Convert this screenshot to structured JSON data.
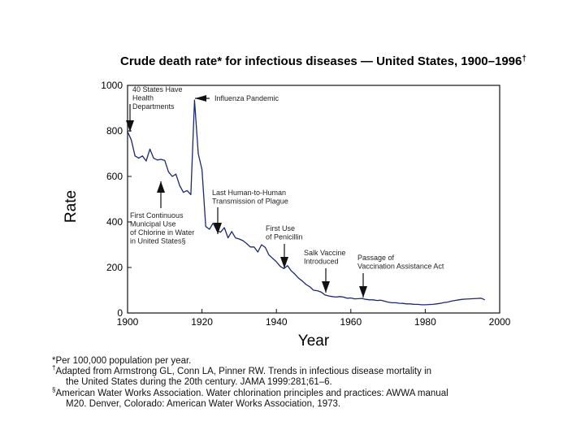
{
  "chart_data": {
    "type": "line",
    "title": "Crude death rate* for infectious diseases — United States, 1900–1996",
    "title_marker": "†",
    "xlabel": "Year",
    "ylabel": "Rate",
    "xlim": [
      1900,
      2000
    ],
    "ylim": [
      0,
      1000
    ],
    "x_ticks": [
      1900,
      1920,
      1940,
      1960,
      1980,
      2000
    ],
    "y_ticks": [
      0,
      200,
      400,
      600,
      800,
      1000
    ],
    "grid": false,
    "series": [
      {
        "name": "Crude death rate",
        "color": "#1b2a6b",
        "points": [
          [
            1900,
            797
          ],
          [
            1901,
            760
          ],
          [
            1902,
            690
          ],
          [
            1903,
            680
          ],
          [
            1904,
            690
          ],
          [
            1905,
            668
          ],
          [
            1906,
            720
          ],
          [
            1907,
            680
          ],
          [
            1908,
            672
          ],
          [
            1909,
            675
          ],
          [
            1910,
            670
          ],
          [
            1911,
            620
          ],
          [
            1912,
            600
          ],
          [
            1913,
            610
          ],
          [
            1914,
            560
          ],
          [
            1915,
            530
          ],
          [
            1916,
            538
          ],
          [
            1917,
            520
          ],
          [
            1918,
            935
          ],
          [
            1919,
            700
          ],
          [
            1920,
            630
          ],
          [
            1921,
            380
          ],
          [
            1922,
            368
          ],
          [
            1923,
            395
          ],
          [
            1924,
            362
          ],
          [
            1925,
            355
          ],
          [
            1926,
            375
          ],
          [
            1927,
            330
          ],
          [
            1928,
            358
          ],
          [
            1929,
            330
          ],
          [
            1930,
            325
          ],
          [
            1931,
            318
          ],
          [
            1932,
            305
          ],
          [
            1933,
            290
          ],
          [
            1934,
            290
          ],
          [
            1935,
            268
          ],
          [
            1936,
            300
          ],
          [
            1937,
            288
          ],
          [
            1938,
            255
          ],
          [
            1939,
            240
          ],
          [
            1940,
            225
          ],
          [
            1941,
            205
          ],
          [
            1942,
            195
          ],
          [
            1943,
            208
          ],
          [
            1944,
            185
          ],
          [
            1945,
            170
          ],
          [
            1946,
            152
          ],
          [
            1947,
            140
          ],
          [
            1948,
            125
          ],
          [
            1949,
            115
          ],
          [
            1950,
            100
          ],
          [
            1951,
            98
          ],
          [
            1952,
            92
          ],
          [
            1953,
            80
          ],
          [
            1954,
            75
          ],
          [
            1955,
            72
          ],
          [
            1956,
            70
          ],
          [
            1957,
            72
          ],
          [
            1958,
            70
          ],
          [
            1959,
            65
          ],
          [
            1960,
            66
          ],
          [
            1961,
            62
          ],
          [
            1962,
            63
          ],
          [
            1963,
            64
          ],
          [
            1964,
            60
          ],
          [
            1965,
            58
          ],
          [
            1966,
            58
          ],
          [
            1967,
            55
          ],
          [
            1968,
            56
          ],
          [
            1969,
            52
          ],
          [
            1970,
            48
          ],
          [
            1971,
            45
          ],
          [
            1972,
            45
          ],
          [
            1973,
            43
          ],
          [
            1974,
            42
          ],
          [
            1975,
            40
          ],
          [
            1976,
            40
          ],
          [
            1977,
            38
          ],
          [
            1978,
            38
          ],
          [
            1979,
            36
          ],
          [
            1980,
            36
          ],
          [
            1981,
            37
          ],
          [
            1982,
            38
          ],
          [
            1983,
            40
          ],
          [
            1984,
            42
          ],
          [
            1985,
            46
          ],
          [
            1986,
            48
          ],
          [
            1987,
            52
          ],
          [
            1988,
            55
          ],
          [
            1989,
            58
          ],
          [
            1990,
            60
          ],
          [
            1991,
            61
          ],
          [
            1992,
            62
          ],
          [
            1993,
            63
          ],
          [
            1994,
            64
          ],
          [
            1995,
            65
          ],
          [
            1996,
            58
          ]
        ]
      }
    ],
    "annotations": [
      {
        "id": "health-depts",
        "year": 1901,
        "lines": [
          "40 States Have",
          "Health",
          "Departments"
        ],
        "arrow": "down"
      },
      {
        "id": "influenza",
        "year": 1918,
        "lines": [
          "Influenza Pandemic"
        ],
        "arrow": "left"
      },
      {
        "id": "chlorine",
        "year": 1909,
        "lines": [
          "First Continuous",
          "Municipal Use",
          "of Chlorine in Water",
          "in United States§"
        ],
        "arrow": "up"
      },
      {
        "id": "plague",
        "year": 1925,
        "lines": [
          "Last Human-to-Human",
          "Transmission of Plague"
        ],
        "arrow": "down"
      },
      {
        "id": "penicillin",
        "year": 1942,
        "lines": [
          "First Use",
          "of Penicillin"
        ],
        "arrow": "down"
      },
      {
        "id": "salk",
        "year": 1955,
        "lines": [
          "Salk Vaccine",
          "Introduced"
        ],
        "arrow": "down"
      },
      {
        "id": "vaccination-act",
        "year": 1963,
        "lines": [
          "Passage of",
          "Vaccination Assistance Act"
        ],
        "arrow": "down"
      }
    ]
  },
  "footnotes": {
    "per": "*Per 100,000 population per year.",
    "adapted_marker": "†",
    "adapted_line1": "Adapted from Armstrong GL, Conn LA, Pinner RW. Trends in infectious disease mortality in",
    "adapted_line2": "the United States during the 20th century. JAMA 1999:281;61–6.",
    "awwa_marker": "§",
    "awwa_line1": "American Water Works Association. Water chlorination principles and practices: AWWA manual",
    "awwa_line2": "M20. Denver, Colorado: American Water Works Association, 1973."
  }
}
